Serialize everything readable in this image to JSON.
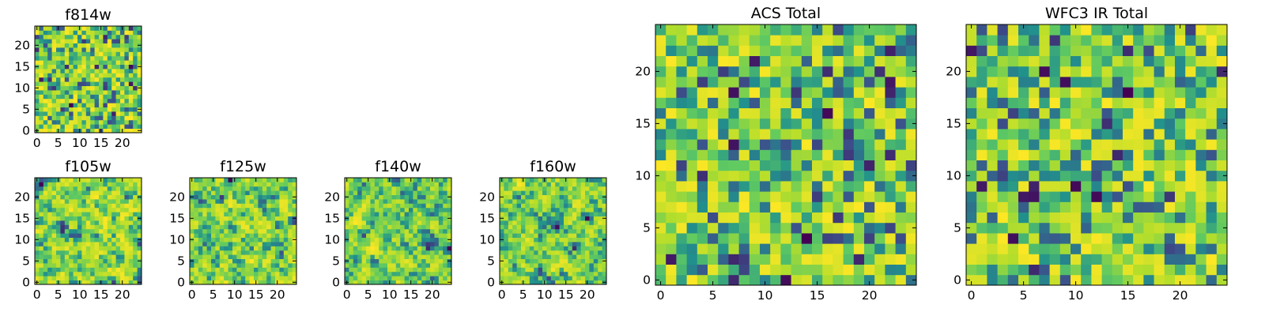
{
  "colormap": {
    "name": "viridis",
    "stops": [
      "#440154",
      "#3b528b",
      "#21918c",
      "#5ec962",
      "#b5de2b",
      "#fde725"
    ]
  },
  "chart_data": [
    {
      "type": "heatmap",
      "title": "f814w",
      "grid": [
        25,
        25
      ],
      "xlim": [
        0,
        24
      ],
      "ylim": [
        0,
        24
      ],
      "xticks": [
        "0",
        "5",
        "10",
        "15",
        "20"
      ],
      "yticks": [
        "0",
        "5",
        "10",
        "15",
        "20"
      ],
      "values_note": "random-like noise field; per-cell values not individually labeled",
      "seed": 11
    },
    {
      "type": "heatmap",
      "title": "f105w",
      "grid": [
        25,
        25
      ],
      "xlim": [
        0,
        24
      ],
      "ylim": [
        0,
        24
      ],
      "xticks": [
        "0",
        "5",
        "10",
        "15",
        "20"
      ],
      "yticks": [
        "0",
        "5",
        "10",
        "15",
        "20"
      ],
      "values_note": "smoothed noise field; per-cell values not individually labeled",
      "seed": 23
    },
    {
      "type": "heatmap",
      "title": "f125w",
      "grid": [
        25,
        25
      ],
      "xlim": [
        0,
        24
      ],
      "ylim": [
        0,
        24
      ],
      "xticks": [
        "0",
        "5",
        "10",
        "15",
        "20"
      ],
      "yticks": [
        "0",
        "5",
        "10",
        "15",
        "20"
      ],
      "values_note": "smoothed noise field; per-cell values not individually labeled",
      "seed": 37
    },
    {
      "type": "heatmap",
      "title": "f140w",
      "grid": [
        25,
        25
      ],
      "xlim": [
        0,
        24
      ],
      "ylim": [
        0,
        24
      ],
      "xticks": [
        "0",
        "5",
        "10",
        "15",
        "20"
      ],
      "yticks": [
        "0",
        "5",
        "10",
        "15",
        "20"
      ],
      "values_note": "smoothed noise field; per-cell values not individually labeled",
      "seed": 41
    },
    {
      "type": "heatmap",
      "title": "f160w",
      "grid": [
        25,
        25
      ],
      "xlim": [
        0,
        24
      ],
      "ylim": [
        0,
        24
      ],
      "xticks": [
        "0",
        "5",
        "10",
        "15",
        "20"
      ],
      "yticks": [
        "0",
        "5",
        "10",
        "15",
        "20"
      ],
      "values_note": "smoothed noise field; per-cell values not individually labeled",
      "seed": 53
    },
    {
      "type": "heatmap",
      "title": "ACS Total",
      "grid": [
        25,
        25
      ],
      "xlim": [
        0,
        24
      ],
      "ylim": [
        0,
        24
      ],
      "xticks": [
        "0",
        "5",
        "10",
        "15",
        "20"
      ],
      "yticks": [
        "0",
        "5",
        "10",
        "15",
        "20"
      ],
      "values_note": "random-like noise field; per-cell values not individually labeled",
      "seed": 67
    },
    {
      "type": "heatmap",
      "title": "WFC3 IR Total",
      "grid": [
        25,
        25
      ],
      "xlim": [
        0,
        24
      ],
      "ylim": [
        0,
        24
      ],
      "xticks": [
        "0",
        "5",
        "10",
        "15",
        "20"
      ],
      "yticks": [
        "0",
        "5",
        "10",
        "15",
        "20"
      ],
      "values_note": "random-like noise field; per-cell values not individually labeled",
      "seed": 79
    }
  ]
}
